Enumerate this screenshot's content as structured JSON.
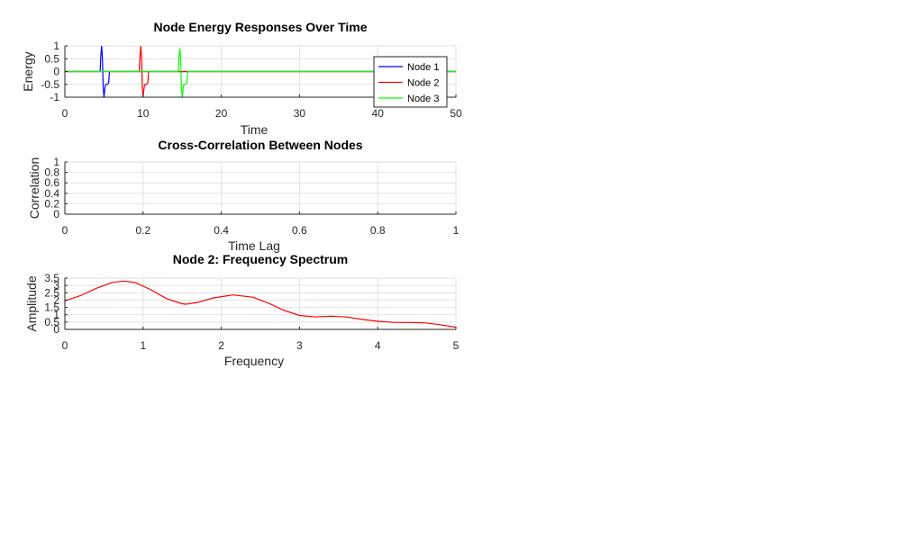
{
  "chart_data": [
    {
      "type": "line",
      "title": "Node Energy Responses Over Time",
      "xlabel": "Time",
      "ylabel": "Energy",
      "xlim": [
        0,
        50
      ],
      "ylim": [
        -1,
        1
      ],
      "xticks": [
        "0",
        "10",
        "20",
        "30",
        "40",
        "50"
      ],
      "yticks": [
        "-1",
        "-0.5",
        "0",
        "0.5",
        "1"
      ],
      "grid": true,
      "legend_position": "top-right",
      "series": [
        {
          "name": "Node 1",
          "color": "#0000ff",
          "x": [
            0,
            4.5,
            4.6,
            4.7,
            4.8,
            4.9,
            5.0,
            5.1,
            5.2,
            5.4,
            5.6,
            5.7,
            5.8,
            50
          ],
          "y": [
            0,
            0,
            0.6,
            1.0,
            0.5,
            -0.6,
            -1.0,
            -0.7,
            -0.5,
            -0.5,
            -0.45,
            0,
            0,
            0
          ]
        },
        {
          "name": "Node 2",
          "color": "#ff0000",
          "x": [
            0,
            9.5,
            9.6,
            9.7,
            9.8,
            9.9,
            10.0,
            10.1,
            10.2,
            10.4,
            10.6,
            10.7,
            10.8,
            50
          ],
          "y": [
            0,
            0,
            0.6,
            1.0,
            0.5,
            -0.6,
            -1.0,
            -0.7,
            -0.5,
            -0.5,
            -0.45,
            0,
            0,
            0
          ]
        },
        {
          "name": "Node 3",
          "color": "#00ff00",
          "x": [
            0,
            14.5,
            14.6,
            14.7,
            14.8,
            14.9,
            15.0,
            15.1,
            15.2,
            15.4,
            15.6,
            15.7,
            15.8,
            50
          ],
          "y": [
            0,
            0,
            0.6,
            0.9,
            0.5,
            -0.6,
            -1.0,
            -0.7,
            -0.5,
            -0.5,
            -0.45,
            0,
            0,
            0
          ]
        }
      ]
    },
    {
      "type": "line",
      "title": "Cross-Correlation Between Nodes",
      "xlabel": "Time Lag",
      "ylabel": "Correlation",
      "xlim": [
        0,
        1
      ],
      "ylim": [
        0,
        1
      ],
      "xticks": [
        "0",
        "0.2",
        "0.4",
        "0.6",
        "0.8",
        "1"
      ],
      "yticks": [
        "0",
        "0.2",
        "0.4",
        "0.6",
        "0.8",
        "1"
      ],
      "grid": true,
      "series": []
    },
    {
      "type": "line",
      "title": "Node 2: Frequency Spectrum",
      "xlabel": "Frequency",
      "ylabel": "Amplitude",
      "xlim": [
        0,
        5
      ],
      "ylim": [
        0,
        3.5
      ],
      "xticks": [
        "0",
        "1",
        "2",
        "3",
        "4",
        "5"
      ],
      "yticks": [
        "0",
        "0.5",
        "1",
        "1.5",
        "2",
        "2.5",
        "3",
        "3.5"
      ],
      "grid": true,
      "series": [
        {
          "color": "#ff0000",
          "x": [
            0,
            0.2,
            0.4,
            0.6,
            0.75,
            0.9,
            1.1,
            1.3,
            1.5,
            1.55,
            1.7,
            1.9,
            2.15,
            2.4,
            2.6,
            2.8,
            3.0,
            3.2,
            3.4,
            3.6,
            3.8,
            4.0,
            4.2,
            4.4,
            4.6,
            4.8,
            5.0
          ],
          "y": [
            1.95,
            2.3,
            2.8,
            3.2,
            3.3,
            3.2,
            2.7,
            2.1,
            1.75,
            1.72,
            1.85,
            2.15,
            2.35,
            2.2,
            1.8,
            1.3,
            0.95,
            0.85,
            0.9,
            0.85,
            0.68,
            0.55,
            0.48,
            0.47,
            0.45,
            0.32,
            0.15
          ]
        }
      ]
    }
  ]
}
